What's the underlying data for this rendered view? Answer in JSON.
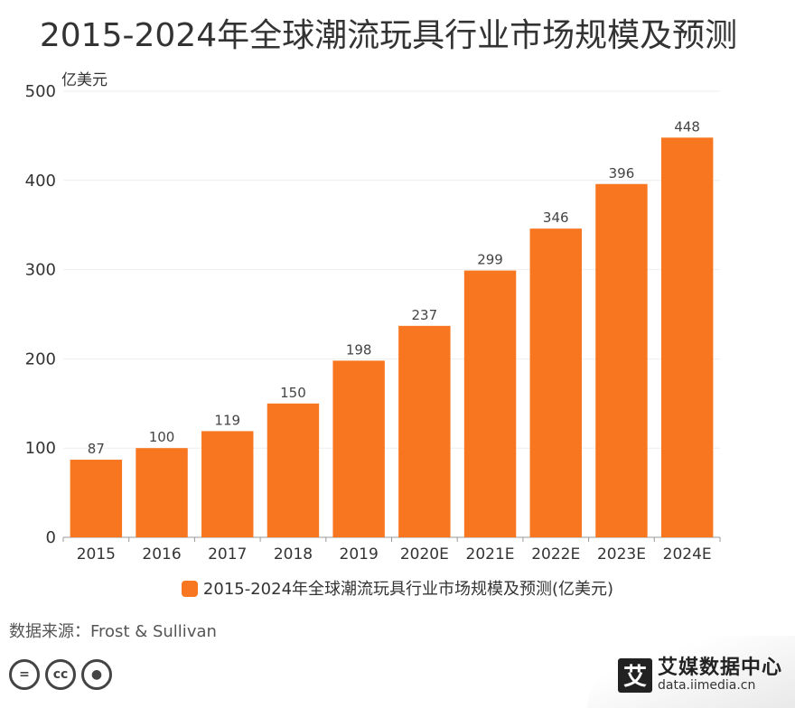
{
  "title": "2015-2024年全球潮流玩具行业市场规模及预测",
  "source": "数据来源：Frost & Sullivan",
  "brand": {
    "name": "艾媒数据中心",
    "url": "data.iimedia.cn",
    "logo_char": "艾"
  },
  "cc_icons": [
    "equals-icon",
    "cc-icon",
    "person-icon"
  ],
  "colors": {
    "bar": "#F87620",
    "grid": "#eeeeee",
    "axis": "#999999",
    "text": "#333333"
  },
  "chart_data": {
    "type": "bar",
    "title": "2015-2024年全球潮流玩具行业市场规模及预测",
    "unit_label": "亿美元",
    "categories": [
      "2015",
      "2016",
      "2017",
      "2018",
      "2019",
      "2020E",
      "2021E",
      "2022E",
      "2023E",
      "2024E"
    ],
    "series": [
      {
        "name": "2015-2024年全球潮流玩具行业市场规模及预测(亿美元)",
        "values": [
          87,
          100,
          119,
          150,
          198,
          237,
          299,
          346,
          396,
          448
        ]
      }
    ],
    "ylim": [
      0,
      500
    ],
    "yticks": [
      0,
      100,
      200,
      300,
      400,
      500
    ],
    "grid": true,
    "legend_position": "bottom"
  }
}
